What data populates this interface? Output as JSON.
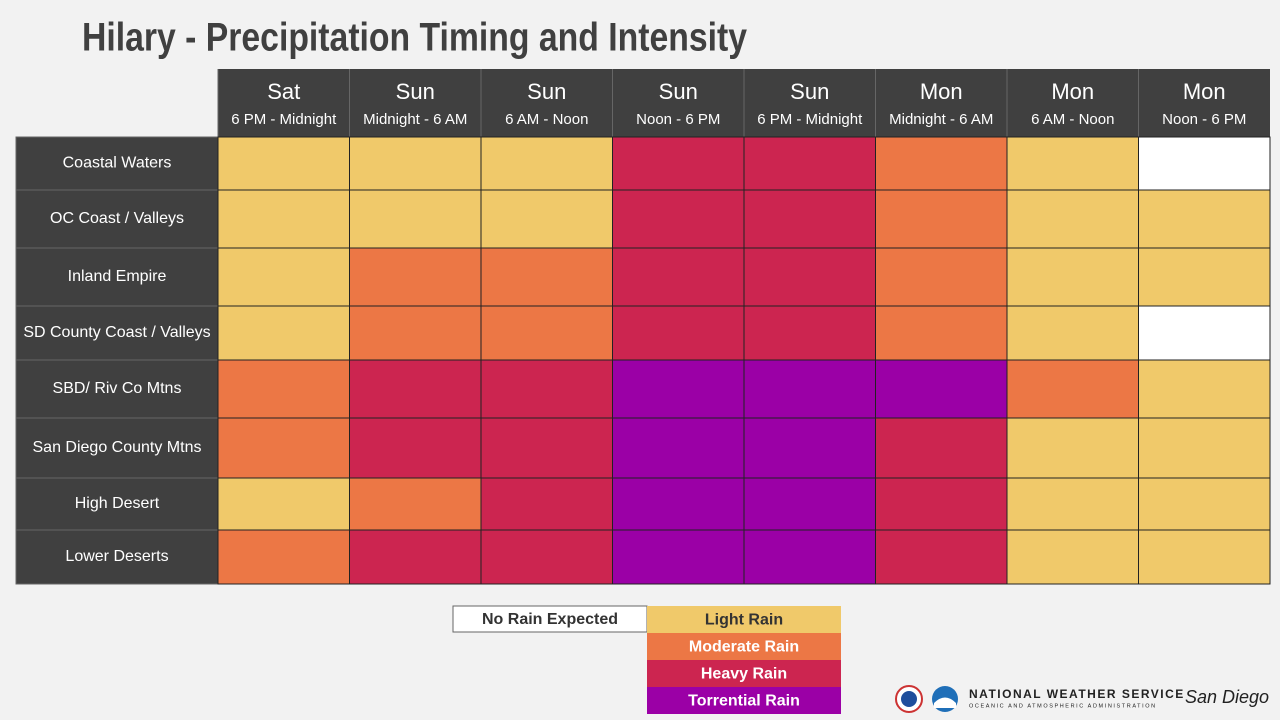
{
  "header": {
    "title": "Hilary - Precipitation Timing and Intensity"
  },
  "columns": [
    {
      "day": "Sat",
      "time": "6 PM - Midnight"
    },
    {
      "day": "Sun",
      "time": "Midnight - 6 AM"
    },
    {
      "day": "Sun",
      "time": "6 AM - Noon"
    },
    {
      "day": "Sun",
      "time": "Noon - 6 PM"
    },
    {
      "day": "Sun",
      "time": "6 PM - Midnight"
    },
    {
      "day": "Mon",
      "time": "Midnight - 6 AM"
    },
    {
      "day": "Mon",
      "time": "6 AM - Noon"
    },
    {
      "day": "Mon",
      "time": "Noon - 6 PM"
    }
  ],
  "rows": [
    {
      "label": "Coastal Waters",
      "levels": [
        1,
        1,
        1,
        3,
        3,
        2,
        1,
        0
      ]
    },
    {
      "label": "OC Coast / Valleys",
      "levels": [
        1,
        1,
        1,
        3,
        3,
        2,
        1,
        1
      ]
    },
    {
      "label": "Inland Empire",
      "levels": [
        1,
        2,
        2,
        3,
        3,
        2,
        1,
        1
      ]
    },
    {
      "label": "SD County Coast / Valleys",
      "levels": [
        1,
        2,
        2,
        3,
        3,
        2,
        1,
        0
      ]
    },
    {
      "label": "SBD/ Riv Co Mtns",
      "levels": [
        2,
        3,
        3,
        4,
        4,
        4,
        2,
        1
      ]
    },
    {
      "label": "San Diego County Mtns",
      "levels": [
        2,
        3,
        3,
        4,
        4,
        3,
        1,
        1
      ]
    },
    {
      "label": "High Desert",
      "levels": [
        1,
        2,
        3,
        4,
        4,
        3,
        1,
        1
      ]
    },
    {
      "label": "Lower Deserts",
      "levels": [
        2,
        3,
        3,
        4,
        4,
        3,
        1,
        1
      ]
    }
  ],
  "legend": [
    {
      "label": "No Rain Expected",
      "color": "#ffffff"
    },
    {
      "label": "Light Rain",
      "color": "#f0c96a"
    },
    {
      "label": "Moderate Rain",
      "color": "#ec7745"
    },
    {
      "label": "Heavy Rain",
      "color": "#cc2550"
    },
    {
      "label": "Torrential Rain",
      "color": "#9b00a6"
    }
  ],
  "footer": {
    "agency": "NATIONAL WEATHER SERVICE",
    "parent": "OCEANIC AND ATMOSPHERIC ADMINISTRATION",
    "office": "San Diego"
  }
}
